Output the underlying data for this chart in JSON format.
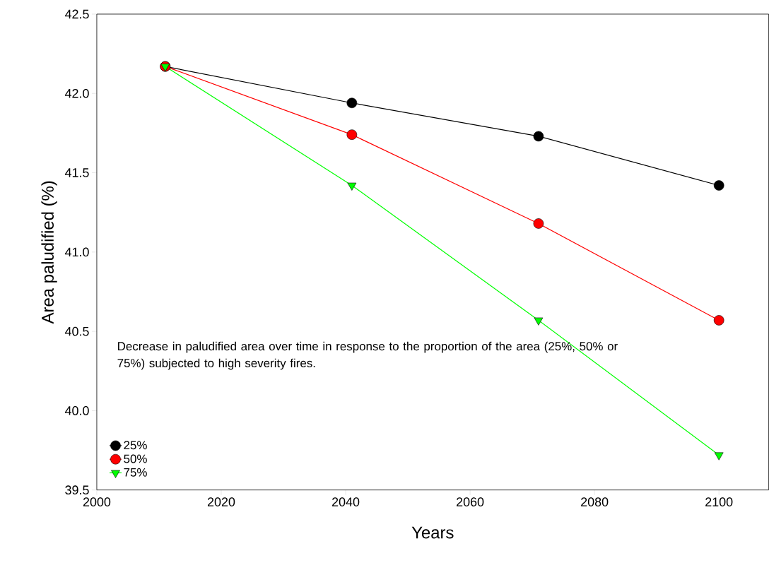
{
  "chart_data": {
    "type": "line",
    "xlabel": "Years",
    "ylabel": "Area paludified (%)",
    "legend_title": "Decrease in paludified area over time in response to the  proportion of the area (25%, 50% or 75%) subjected to high severity fires.",
    "x": [
      2011,
      2041,
      2071,
      2100
    ],
    "series": [
      {
        "name": "25%",
        "color": "#000000",
        "marker": "circle",
        "values": [
          42.17,
          41.94,
          41.73,
          41.42
        ]
      },
      {
        "name": "50%",
        "color": "#ff0000",
        "marker": "circle",
        "values": [
          42.17,
          41.74,
          41.18,
          40.57
        ]
      },
      {
        "name": "75%",
        "color": "#00ff00",
        "marker": "triangle",
        "values": [
          42.17,
          41.42,
          40.57,
          39.72
        ]
      }
    ],
    "xlim": [
      2000,
      2108
    ],
    "xticks": [
      2000,
      2020,
      2040,
      2060,
      2080,
      2100
    ],
    "ylim": [
      39.5,
      42.5
    ],
    "yticks": [
      {
        "value": 39.5,
        "label": "39.5"
      },
      {
        "value": 40,
        "label": "40.0"
      },
      {
        "value": 40.5,
        "label": "40.5"
      },
      {
        "value": 41,
        "label": "41.0"
      },
      {
        "value": 41.5,
        "label": "41.5"
      },
      {
        "value": 42,
        "label": "42.0"
      },
      {
        "value": 42.5,
        "label": "42.5"
      }
    ],
    "grid": false,
    "legend": "bottom left"
  }
}
